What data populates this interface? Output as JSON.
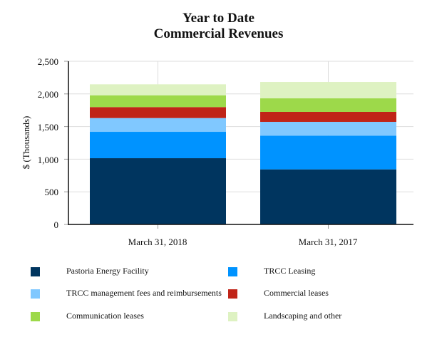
{
  "chart_data": {
    "type": "bar",
    "stacked": true,
    "title": "Year to Date",
    "subtitle": "Commercial Revenues",
    "xlabel": "",
    "ylabel": "$ (Thousands)",
    "ylim": [
      0,
      2500
    ],
    "yticks": [
      0,
      500,
      1000,
      1500,
      2000,
      2500
    ],
    "ytick_labels": [
      "0",
      "500",
      "1,000",
      "1,500",
      "2,000",
      "2,500"
    ],
    "grid": true,
    "legend_position": "bottom",
    "categories": [
      "March 31, 2018",
      "March 31, 2017"
    ],
    "series": [
      {
        "name": "Pastoria Energy Facility",
        "color": "#00355F",
        "values": [
          1015,
          844
        ]
      },
      {
        "name": "TRCC Leasing",
        "color": "#0093FF",
        "values": [
          404,
          517
        ]
      },
      {
        "name": "TRCC management fees and reimbursements",
        "color": "#80C8FF",
        "values": [
          211,
          211
        ]
      },
      {
        "name": "Commercial leases",
        "color": "#C02418",
        "values": [
          168,
          153
        ]
      },
      {
        "name": "Communication leases",
        "color": "#9DD94A",
        "values": [
          181,
          207
        ]
      },
      {
        "name": "Landscaping and other",
        "color": "#DEF2C2",
        "values": [
          168,
          251
        ]
      }
    ]
  },
  "title": {
    "line1": "Year to Date",
    "line2": "Commercial Revenues"
  },
  "axis": {
    "ylabel": "$ (Thousands)",
    "yticks": [
      "2,500",
      "2,000",
      "1,500",
      "1,000",
      "500",
      "0"
    ],
    "xticks": [
      "March 31, 2018",
      "March 31, 2017"
    ]
  },
  "legend": [
    {
      "label": "Pastoria Energy Facility",
      "color": "#00355F"
    },
    {
      "label": "TRCC Leasing",
      "color": "#0093FF"
    },
    {
      "label": "TRCC management fees and reimbursements",
      "color": "#80C8FF"
    },
    {
      "label": "Commercial leases",
      "color": "#C02418"
    },
    {
      "label": "Communication leases",
      "color": "#9DD94A"
    },
    {
      "label": "Landscaping and other",
      "color": "#DEF2C2"
    }
  ]
}
